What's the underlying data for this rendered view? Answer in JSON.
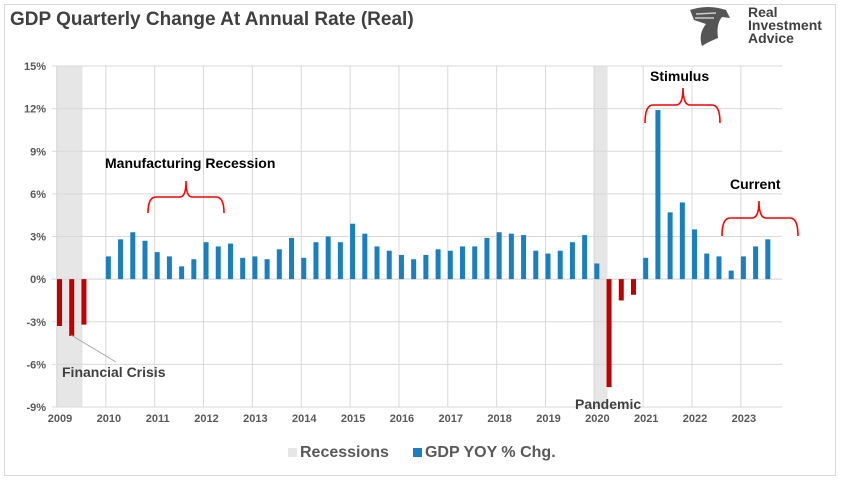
{
  "chart_data": {
    "type": "bar",
    "title": "GDP Quarterly Change At Annual Rate (Real)",
    "xlabel": "",
    "ylabel": "",
    "ylim": [
      -9,
      15
    ],
    "yticks": [
      "15%",
      "12%",
      "9%",
      "6%",
      "3%",
      "0%",
      "-3%",
      "-6%",
      "-9%"
    ],
    "ytick_values": [
      15,
      12,
      9,
      6,
      3,
      0,
      -3,
      -6,
      -9
    ],
    "xticks": [
      "2009",
      "2010",
      "2011",
      "2012",
      "2013",
      "2014",
      "2015",
      "2016",
      "2017",
      "2018",
      "2019",
      "2020",
      "2021",
      "2022",
      "2023"
    ],
    "grid": true,
    "legend_position": "bottom",
    "colors": {
      "positive": "#1a7fbf",
      "negative": "#c00000",
      "recession": "#e6e6e6",
      "bracket": "#ff0000"
    },
    "start_year": 2009,
    "series": [
      {
        "name": "GDP YOY % Chg.",
        "frequency": "quarterly",
        "values": [
          -3.3,
          -4.0,
          -3.2,
          0.0,
          1.6,
          2.8,
          3.3,
          2.7,
          1.9,
          1.6,
          0.9,
          1.4,
          2.6,
          2.3,
          2.5,
          1.5,
          1.6,
          1.4,
          2.1,
          2.9,
          1.5,
          2.6,
          3.0,
          2.6,
          3.9,
          3.2,
          2.3,
          2.0,
          1.7,
          1.4,
          1.7,
          2.1,
          2.0,
          2.3,
          2.3,
          2.9,
          3.3,
          3.2,
          3.1,
          2.0,
          1.8,
          2.0,
          2.6,
          3.1,
          1.1,
          -7.6,
          -1.5,
          -1.1,
          1.5,
          11.9,
          4.7,
          5.4,
          3.5,
          1.8,
          1.6,
          0.6,
          1.6,
          2.3,
          2.8
        ]
      },
      {
        "name": "Recessions",
        "ranges": [
          [
            "2009 Q1",
            "2009 Q2"
          ],
          [
            "2020 Q1",
            "2020 Q1"
          ]
        ]
      }
    ],
    "annotations": {
      "financial_crisis": "Financial Crisis",
      "manufacturing_recession": "Manufacturing Recession",
      "pandemic": "Pandemic",
      "stimulus": "Stimulus",
      "current": "Current"
    }
  },
  "logo": {
    "line1": "Real",
    "line2": "Investment",
    "line3": "Advice"
  },
  "legend": {
    "recessions": "Recessions",
    "gdp": "GDP YOY % Chg."
  }
}
